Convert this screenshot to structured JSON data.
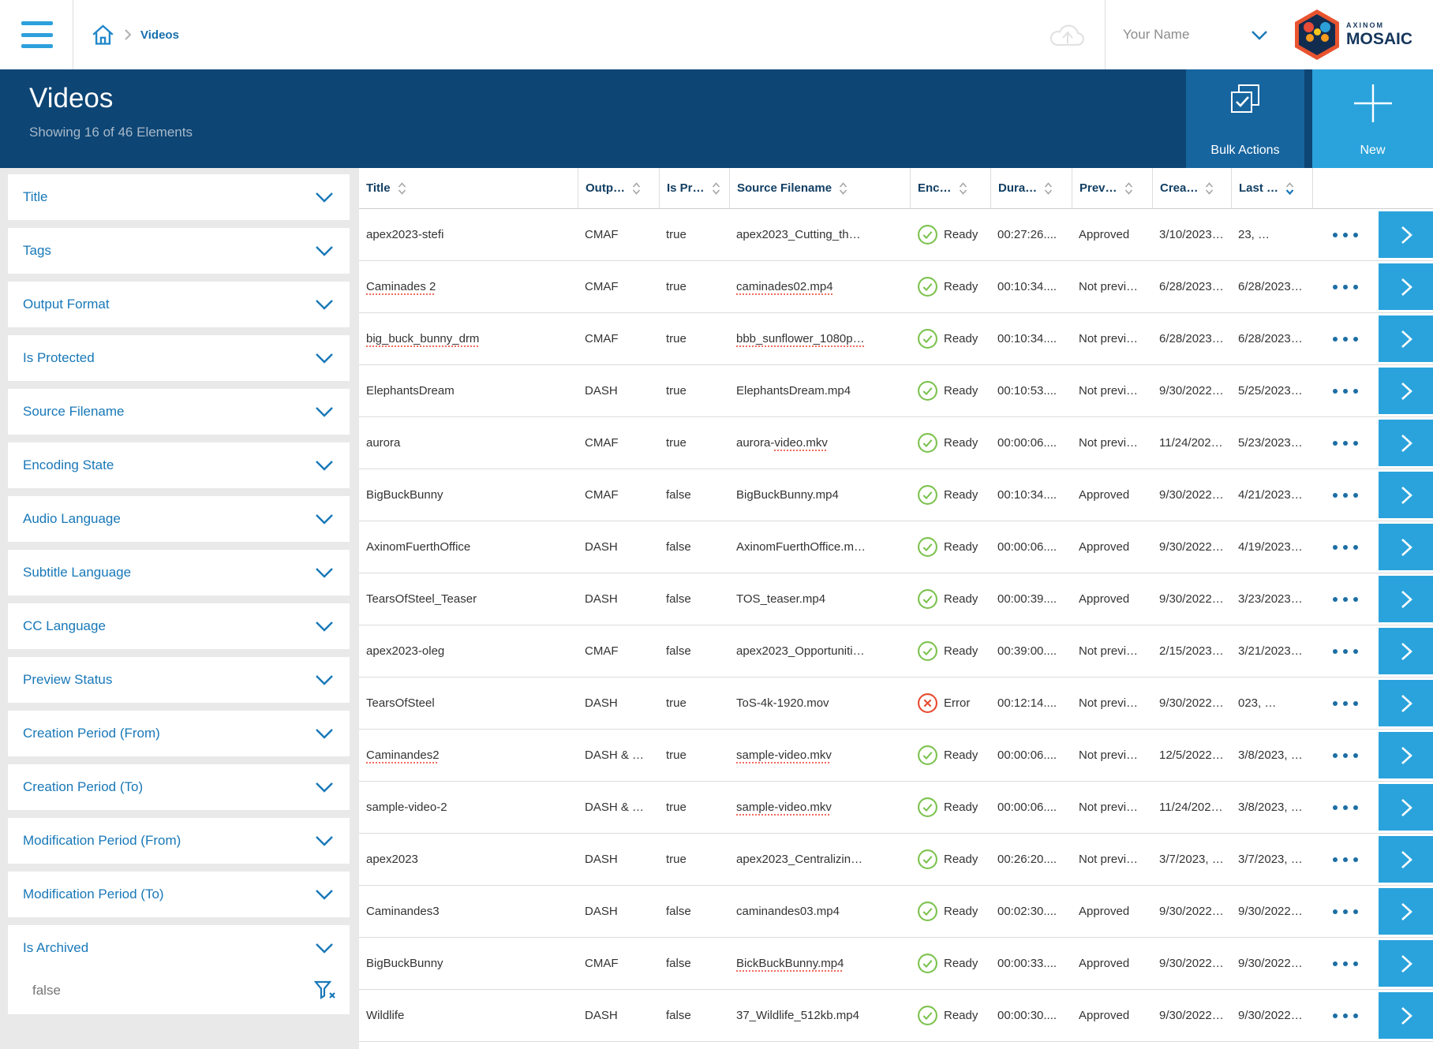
{
  "colors": {
    "accent_blue": "#1878b8",
    "header_bg": "#0d4574",
    "bulk_button_bg": "#17659f",
    "new_button_bg": "#2aa3dc",
    "ready_green": "#7cc24e",
    "error_red": "#e8492f",
    "sidebar_bg": "#e9e9e9",
    "brand_navy": "#16365c"
  },
  "topbar": {
    "breadcrumb_current": "Videos",
    "user_name": "Your Name",
    "brand_top": "AXINOM",
    "brand_bottom": "MOSAIC"
  },
  "header": {
    "title": "Videos",
    "subtitle": "Showing 16 of 46 Elements",
    "bulk_label": "Bulk Actions",
    "new_label": "New"
  },
  "filters": {
    "items": [
      "Title",
      "Tags",
      "Output Format",
      "Is Protected",
      "Source Filename",
      "Encoding State",
      "Audio Language",
      "Subtitle Language",
      "CC Language",
      "Preview Status",
      "Creation Period (From)",
      "Creation Period (To)",
      "Modification Period (From)",
      "Modification Period (To)",
      "Is Archived"
    ],
    "archived_value": "false"
  },
  "table": {
    "columns": [
      {
        "label": "Title",
        "sort": "none"
      },
      {
        "label": "Outp…",
        "sort": "none"
      },
      {
        "label": "Is Pr…",
        "sort": "none"
      },
      {
        "label": "Source Filename",
        "sort": "none"
      },
      {
        "label": "Enc…",
        "sort": "none"
      },
      {
        "label": "Dura…",
        "sort": "none"
      },
      {
        "label": "Prev…",
        "sort": "none"
      },
      {
        "label": "Crea…",
        "sort": "none"
      },
      {
        "label": "Last …",
        "sort": "desc"
      }
    ],
    "rows": [
      {
        "title": "apex2023-stefi",
        "title_sp": false,
        "output": "CMAF",
        "is_protected": "true",
        "source_prefix": "",
        "source": "apex2023_Cutting_th…",
        "source_sp": false,
        "state": "Ready",
        "state_type": "ready",
        "duration": "00:27:26....",
        "preview": "Approved",
        "created": "3/10/2023…",
        "modified": "23, …"
      },
      {
        "title": "Caminades 2",
        "title_sp": true,
        "output": "CMAF",
        "is_protected": "true",
        "source_prefix": "",
        "source": "caminades02.mp4",
        "source_sp": true,
        "state": "Ready",
        "state_type": "ready",
        "duration": "00:10:34....",
        "preview": "Not previ…",
        "created": "6/28/2023…",
        "modified": "6/28/2023…"
      },
      {
        "title": "big_buck_bunny_drm",
        "title_sp": true,
        "output": "CMAF",
        "is_protected": "true",
        "source_prefix": "",
        "source": "bbb_sunflower_1080p…",
        "source_sp": true,
        "state": "Ready",
        "state_type": "ready",
        "duration": "00:10:34....",
        "preview": "Not previ…",
        "created": "6/28/2023…",
        "modified": "6/28/2023…"
      },
      {
        "title": "ElephantsDream",
        "title_sp": false,
        "output": "DASH",
        "is_protected": "true",
        "source_prefix": "",
        "source": "ElephantsDream.mp4",
        "source_sp": false,
        "state": "Ready",
        "state_type": "ready",
        "duration": "00:10:53....",
        "preview": "Not previ…",
        "created": "9/30/2022…",
        "modified": "5/25/2023…"
      },
      {
        "title": "aurora",
        "title_sp": false,
        "output": "CMAF",
        "is_protected": "true",
        "source_prefix": "aurora-",
        "source": "video.mkv",
        "source_sp": true,
        "state": "Ready",
        "state_type": "ready",
        "duration": "00:00:06....",
        "preview": "Not previ…",
        "created": "11/24/202…",
        "modified": "5/23/2023…"
      },
      {
        "title": "BigBuckBunny",
        "title_sp": false,
        "output": "CMAF",
        "is_protected": "false",
        "source_prefix": "",
        "source": "BigBuckBunny.mp4",
        "source_sp": false,
        "state": "Ready",
        "state_type": "ready",
        "duration": "00:10:34....",
        "preview": "Approved",
        "created": "9/30/2022…",
        "modified": "4/21/2023…"
      },
      {
        "title": "AxinomFuerthOffice",
        "title_sp": false,
        "output": "DASH",
        "is_protected": "false",
        "source_prefix": "",
        "source": "AxinomFuerthOffice.m…",
        "source_sp": false,
        "state": "Ready",
        "state_type": "ready",
        "duration": "00:00:06....",
        "preview": "Approved",
        "created": "9/30/2022…",
        "modified": "4/19/2023…"
      },
      {
        "title": "TearsOfSteel_Teaser",
        "title_sp": false,
        "output": "DASH",
        "is_protected": "false",
        "source_prefix": "",
        "source": "TOS_teaser.mp4",
        "source_sp": false,
        "state": "Ready",
        "state_type": "ready",
        "duration": "00:00:39....",
        "preview": "Approved",
        "created": "9/30/2022…",
        "modified": "3/23/2023…"
      },
      {
        "title": "apex2023-oleg",
        "title_sp": false,
        "output": "CMAF",
        "is_protected": "false",
        "source_prefix": "",
        "source": "apex2023_Opportuniti…",
        "source_sp": false,
        "state": "Ready",
        "state_type": "ready",
        "duration": "00:39:00....",
        "preview": "Not previ…",
        "created": "2/15/2023…",
        "modified": "3/21/2023…"
      },
      {
        "title": "TearsOfSteel",
        "title_sp": false,
        "output": "DASH",
        "is_protected": "true",
        "source_prefix": "",
        "source": "ToS-4k-1920.mov",
        "source_sp": false,
        "state": "Error",
        "state_type": "error",
        "duration": "00:12:14....",
        "preview": "Not previ…",
        "created": "9/30/2022…",
        "modified": "023, …"
      },
      {
        "title": "Caminandes2",
        "title_sp": true,
        "output": "DASH & …",
        "is_protected": "true",
        "source_prefix": "",
        "source": "sample-video.mkv",
        "source_sp": true,
        "state": "Ready",
        "state_type": "ready",
        "duration": "00:00:06....",
        "preview": "Not previ…",
        "created": "12/5/2022…",
        "modified": "3/8/2023, …"
      },
      {
        "title": "sample-video-2",
        "title_sp": false,
        "output": "DASH & …",
        "is_protected": "true",
        "source_prefix": "",
        "source": "sample-video.mkv",
        "source_sp": true,
        "state": "Ready",
        "state_type": "ready",
        "duration": "00:00:06....",
        "preview": "Not previ…",
        "created": "11/24/202…",
        "modified": "3/8/2023, …"
      },
      {
        "title": "apex2023",
        "title_sp": false,
        "output": "DASH",
        "is_protected": "true",
        "source_prefix": "",
        "source": "apex2023_Centralizin…",
        "source_sp": false,
        "state": "Ready",
        "state_type": "ready",
        "duration": "00:26:20....",
        "preview": "Not previ…",
        "created": "3/7/2023, …",
        "modified": "3/7/2023, …"
      },
      {
        "title": "Caminandes3",
        "title_sp": false,
        "output": "DASH",
        "is_protected": "false",
        "source_prefix": "",
        "source": "caminandes03.mp4",
        "source_sp": false,
        "state": "Ready",
        "state_type": "ready",
        "duration": "00:02:30....",
        "preview": "Approved",
        "created": "9/30/2022…",
        "modified": "9/30/2022…"
      },
      {
        "title": "BigBuckBunny",
        "title_sp": false,
        "output": "CMAF",
        "is_protected": "false",
        "source_prefix": "",
        "source": "BickBuckBunny.mp4",
        "source_sp": true,
        "state": "Ready",
        "state_type": "ready",
        "duration": "00:00:33....",
        "preview": "Approved",
        "created": "9/30/2022…",
        "modified": "9/30/2022…"
      },
      {
        "title": "Wildlife",
        "title_sp": false,
        "output": "DASH",
        "is_protected": "false",
        "source_prefix": "",
        "source": "37_Wildlife_512kb.mp4",
        "source_sp": false,
        "state": "Ready",
        "state_type": "ready",
        "duration": "00:00:30....",
        "preview": "Approved",
        "created": "9/30/2022…",
        "modified": "9/30/2022…"
      }
    ]
  }
}
